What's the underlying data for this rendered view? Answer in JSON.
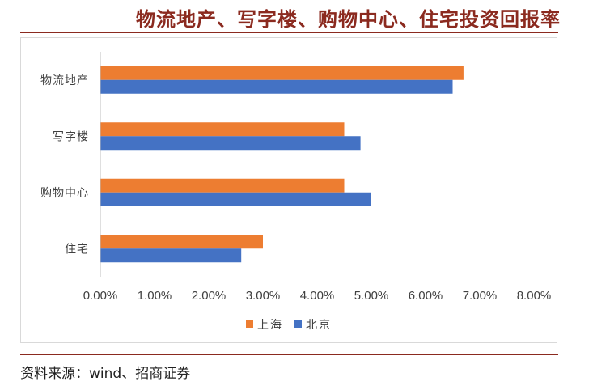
{
  "title": "物流地产、写字楼、购物中心、住宅投资回报率",
  "source": "资料来源：wind、招商证券",
  "colors": {
    "shanghai": "#ED7D31",
    "beijing": "#4472C4",
    "axis": "#bfbfbf",
    "text": "#404040"
  },
  "chart_data": {
    "type": "bar",
    "orientation": "horizontal",
    "categories": [
      "物流地产",
      "写字楼",
      "购物中心",
      "住宅"
    ],
    "series": [
      {
        "name": "上海",
        "values": [
          6.7,
          4.5,
          4.5,
          3.0
        ]
      },
      {
        "name": "北京",
        "values": [
          6.5,
          4.8,
          5.0,
          2.6
        ]
      }
    ],
    "xlim": [
      0,
      8
    ],
    "xticks": [
      "0.00%",
      "1.00%",
      "2.00%",
      "3.00%",
      "4.00%",
      "5.00%",
      "6.00%",
      "7.00%",
      "8.00%"
    ],
    "legend_position": "bottom",
    "grid": false
  }
}
